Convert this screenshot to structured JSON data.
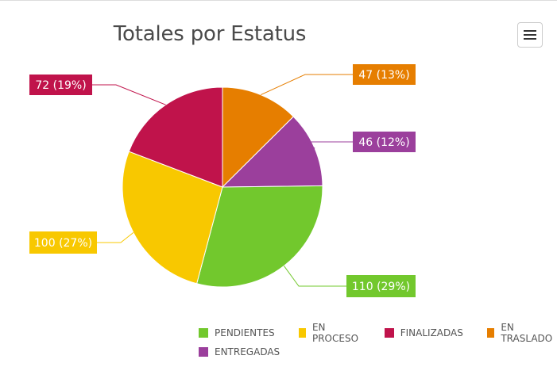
{
  "chart_data": {
    "type": "pie",
    "title": "Totales por Estatus",
    "slices": [
      {
        "label": "EN TRASLADO",
        "value": 47,
        "percent": 13,
        "color": "#e67e00"
      },
      {
        "label": "ENTREGADAS",
        "value": 46,
        "percent": 12,
        "color": "#9b3f9c"
      },
      {
        "label": "PENDIENTES",
        "value": 110,
        "percent": 29,
        "color": "#72c82d"
      },
      {
        "label": "EN PROCESO",
        "value": 100,
        "percent": 27,
        "color": "#f8c800"
      },
      {
        "label": "FINALIZADAS",
        "value": 72,
        "percent": 19,
        "color": "#c0134b"
      }
    ],
    "data_labels": [
      "47 (13%)",
      "46 (12%)",
      "110 (29%)",
      "100 (27%)",
      "72 (19%)"
    ],
    "legend": {
      "placement": "bottom-right",
      "items": [
        {
          "label": "PENDIENTES",
          "color": "#72c82d"
        },
        {
          "label": "EN PROCESO",
          "color": "#f8c800"
        },
        {
          "label": "FINALIZADAS",
          "color": "#c0134b"
        },
        {
          "label": "EN TRASLADO",
          "color": "#e67e00"
        },
        {
          "label": "ENTREGADAS",
          "color": "#9b3f9c"
        }
      ]
    }
  },
  "toolbar": {
    "menu_icon": "hamburger-menu-icon"
  }
}
